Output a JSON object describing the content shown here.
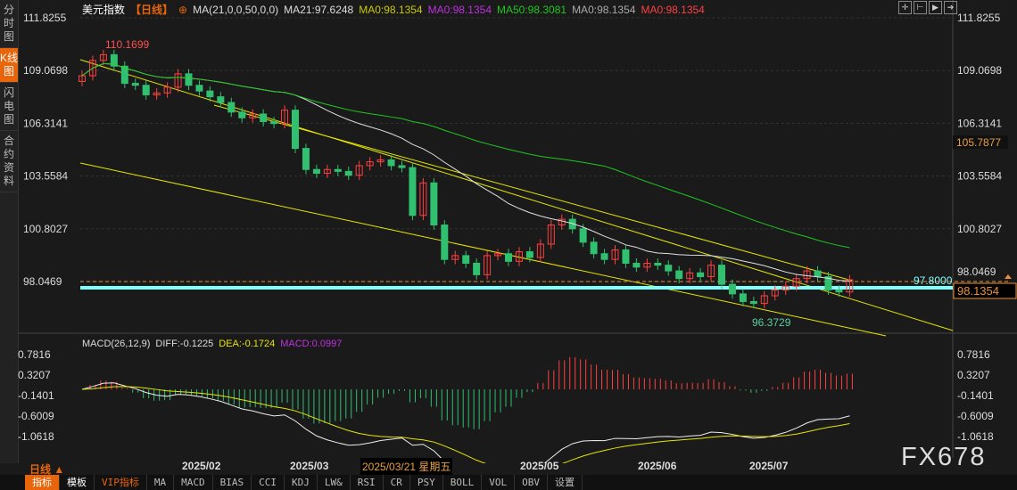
{
  "sidebar": {
    "tabs": [
      {
        "label": "分时图"
      },
      {
        "label": "K线图",
        "active": true
      },
      {
        "label": "闪电图"
      },
      {
        "label": "合约资料"
      }
    ]
  },
  "header": {
    "title": "美元指数",
    "period": "【日线】",
    "ma_config": "MA(21,0,0,50,0,0)",
    "ma21": "MA21:97.6248",
    "ma0a": "MA0:98.1354",
    "ma0b": "MA0:98.1354",
    "ma50": "MA50:98.3081",
    "ma0c": "MA0:98.1354",
    "ma0d": "MA0:98.1354"
  },
  "colors": {
    "up": "#ff4040",
    "down": "#30c070",
    "ma21": "#e0e0e0",
    "ma50": "#1ec81e",
    "trendline": "#e6e600",
    "support": "#80ffff",
    "accent": "#e8650b"
  },
  "tools": [
    "crosshair-icon",
    "zoom-range-icon",
    "play-icon",
    "move-right-icon"
  ],
  "price_axis": {
    "ticks": [
      "111.8255",
      "109.0698",
      "106.3141",
      "103.5584",
      "100.8027",
      "98.0469"
    ],
    "marker_left": "105.7877",
    "current": "98.1354",
    "line_label": "97.8000",
    "dashed_label": "98.0469"
  },
  "annotations": {
    "high": "110.1699",
    "low": "96.3729"
  },
  "macd": {
    "title": "MACD(26,12,9)",
    "diff": "DIFF:-0.1225",
    "dea": "DEA:-0.1724",
    "macd": "MACD:0.0997",
    "ticks": [
      "0.7816",
      "0.3207",
      "-0.1401",
      "-0.6009",
      "-1.0618"
    ]
  },
  "date_axis": {
    "period": "日线 ▲",
    "labels": [
      "2025/02",
      "2025/03",
      "2025/05",
      "2025/06",
      "2025/07"
    ],
    "cursor": "2025/03/21 星期五"
  },
  "watermark": "FX678",
  "toolbar": [
    "指标",
    "模板",
    "VIP指标",
    "MA",
    "MACD",
    "BIAS",
    "CCI",
    "KDJ",
    "LW&",
    "RSI",
    "CR",
    "PSY",
    "BOLL",
    "VOL",
    "OBV",
    "设置"
  ],
  "chart_data": {
    "type": "candlestick",
    "close": [
      108.8,
      109.6,
      109.9,
      109.3,
      108.4,
      108.3,
      107.8,
      107.9,
      108.2,
      108.9,
      108.3,
      108.0,
      107.7,
      107.4,
      106.9,
      106.6,
      106.8,
      106.4,
      106.3,
      107.0,
      105.0,
      103.9,
      103.7,
      103.9,
      103.8,
      103.6,
      104.1,
      104.3,
      104.4,
      104.1,
      104.0,
      101.5,
      103.2,
      101.0,
      99.2,
      99.4,
      99.0,
      98.4,
      99.4,
      99.5,
      99.1,
      99.6,
      99.3,
      100.0,
      101.0,
      101.3,
      100.8,
      100.1,
      99.5,
      99.2,
      99.7,
      99.0,
      98.8,
      99.0,
      98.9,
      98.6,
      98.2,
      98.5,
      98.3,
      98.9,
      97.9,
      97.4,
      97.0,
      96.9,
      97.3,
      97.6,
      97.8,
      98.2,
      98.6,
      98.3,
      97.6,
      97.5,
      98.1354
    ],
    "ylim": [
      96.0,
      111.8255
    ],
    "ma_periods": [
      21,
      50
    ],
    "macd_ylim": [
      -1.0618,
      0.7816
    ]
  }
}
